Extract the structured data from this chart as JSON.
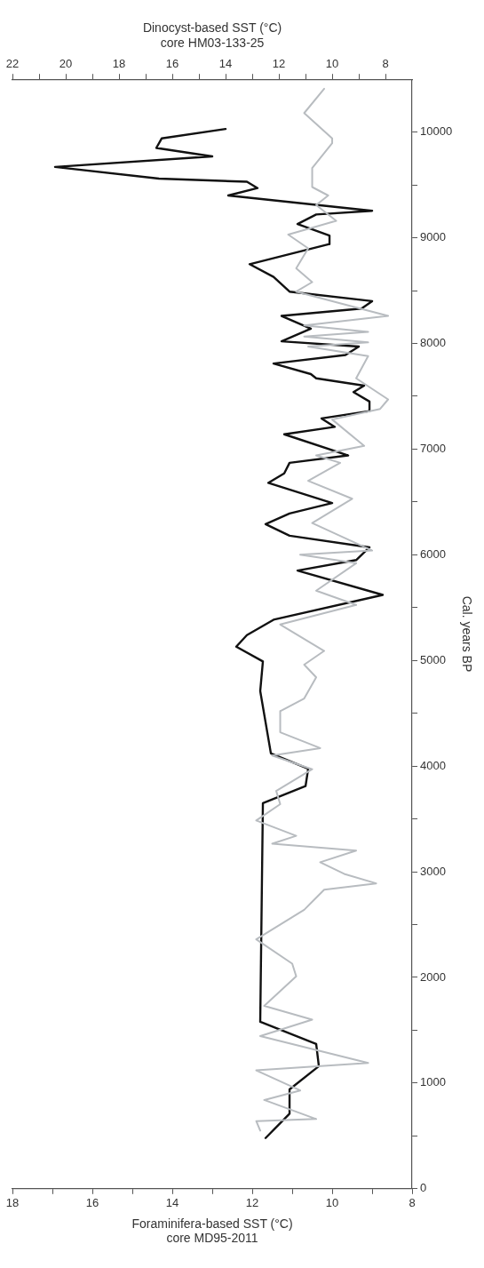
{
  "chart_data": {
    "type": "line",
    "orientation": "horizontal",
    "ylabel": "Cal. years BP",
    "xlabel": "Foraminifera-based SST (°C)\ncore MD95-2011",
    "x2label": "Dinocyst-based SST (°C)\ncore HM03-133-25",
    "ylim": [
      0,
      10500
    ],
    "yticks": [
      0,
      {
        "value": 500,
        "label": null
      },
      1000,
      {
        "value": 1500,
        "label": null
      },
      2000,
      {
        "value": 2500,
        "label": null
      },
      3000,
      {
        "value": 3500,
        "label": null
      },
      4000,
      {
        "value": 4500,
        "label": null
      },
      5000,
      {
        "value": 5500,
        "label": null
      },
      6000,
      {
        "value": 6500,
        "label": null
      },
      7000,
      {
        "value": 7500,
        "label": null
      },
      8000,
      {
        "value": 8500,
        "label": null
      },
      9000,
      {
        "value": 9500,
        "label": null
      },
      10000
    ],
    "xlim": [
      18,
      8
    ],
    "xticks": [
      8,
      {
        "value": 9,
        "label": null
      },
      10,
      {
        "value": 11,
        "label": null
      },
      12,
      {
        "value": 13,
        "label": null
      },
      14,
      {
        "value": 15,
        "label": null
      },
      16,
      {
        "value": 17,
        "label": null
      },
      18
    ],
    "x2lim": [
      22,
      7
    ],
    "x2ticks": [
      8,
      {
        "value": 9,
        "label": null
      },
      10,
      {
        "value": 11,
        "label": null
      },
      12,
      {
        "value": 13,
        "label": null
      },
      14,
      {
        "value": 15,
        "label": null
      },
      16,
      {
        "value": 17,
        "label": null
      },
      18,
      {
        "value": 19,
        "label": null
      },
      20,
      {
        "value": 21,
        "label": null
      },
      22
    ],
    "grid": false,
    "legend": false,
    "marker": "none",
    "line_style": "solid",
    "series": [
      {
        "color": "#b8bcc0",
        "x": [
          10410,
          10180,
          9940,
          9895,
          9660,
          9480,
          9400,
          9310,
          9160,
          9030,
          8900,
          8710,
          8580,
          8490,
          8370,
          8260,
          8170,
          8110,
          8065,
          8010,
          7970,
          7880,
          7670,
          7470,
          7380,
          7280,
          7030,
          6940,
          6870,
          6700,
          6530,
          6300,
          6040,
          6000,
          5920,
          5660,
          5525,
          5340,
          5090,
          4960,
          4840,
          4640,
          4520,
          4320,
          4170,
          4100,
          3970,
          3765,
          3640,
          3485,
          3340,
          3265,
          3200,
          3090,
          2980,
          2890,
          2830,
          2640,
          2360,
          2130,
          2010,
          1730,
          1600,
          1445,
          1190,
          1120,
          930,
          840,
          660,
          640,
          550
        ],
        "values": [
          10.2,
          10.7,
          10.0,
          10.0,
          10.5,
          10.5,
          10.1,
          10.4,
          9.9,
          11.1,
          10.6,
          10.9,
          10.5,
          10.9,
          9.7,
          8.6,
          10.7,
          9.1,
          10.7,
          9.1,
          10.6,
          9.1,
          9.4,
          8.6,
          8.8,
          10.0,
          9.2,
          10.4,
          9.8,
          10.6,
          9.5,
          10.5,
          9.0,
          10.8,
          9.4,
          10.4,
          9.4,
          11.3,
          10.2,
          10.7,
          10.4,
          10.7,
          11.3,
          11.3,
          10.3,
          11.5,
          10.5,
          11.4,
          11.3,
          11.9,
          10.9,
          11.5,
          9.4,
          10.3,
          9.7,
          8.9,
          10.2,
          10.7,
          11.9,
          11.0,
          10.9,
          11.7,
          10.5,
          11.8,
          9.1,
          11.9,
          10.8,
          11.7,
          10.4,
          11.9,
          11.8
        ]
      },
      {
        "color": "#111111",
        "axis": "x2",
        "x": [
          10030,
          9940,
          9850,
          9770,
          9670,
          9560,
          9530,
          9470,
          9400,
          9255,
          9220,
          9130,
          9020,
          8940,
          8750,
          8630,
          8490,
          8400,
          8330,
          8260,
          8140,
          8020,
          7970,
          7890,
          7810,
          7710,
          7670,
          7600,
          7540,
          7450,
          7360,
          7290,
          7210,
          7140,
          6940,
          6870,
          6770,
          6680,
          6490,
          6390,
          6290,
          6180,
          6070,
          5950,
          5850,
          5620,
          5385,
          5240,
          5130,
          4990,
          4710,
          4120,
          3975,
          3810,
          3650,
          1580,
          1370,
          1160,
          940,
          710,
          480
        ],
        "values": [
          14.0,
          16.4,
          16.6,
          14.5,
          20.4,
          16.5,
          13.2,
          12.8,
          13.9,
          8.5,
          10.6,
          11.3,
          10.1,
          10.1,
          13.1,
          12.2,
          11.6,
          8.5,
          8.9,
          11.9,
          10.8,
          11.9,
          9.0,
          9.5,
          12.2,
          10.8,
          10.6,
          8.8,
          9.2,
          8.6,
          8.6,
          10.4,
          9.9,
          11.8,
          9.4,
          11.6,
          11.8,
          12.4,
          10.0,
          11.6,
          12.5,
          11.6,
          8.6,
          9.1,
          11.3,
          8.1,
          12.2,
          13.2,
          13.6,
          12.6,
          12.7,
          12.3,
          10.9,
          11.0,
          12.6,
          12.7,
          10.6,
          10.5,
          11.6,
          11.6,
          12.5
        ]
      }
    ]
  }
}
